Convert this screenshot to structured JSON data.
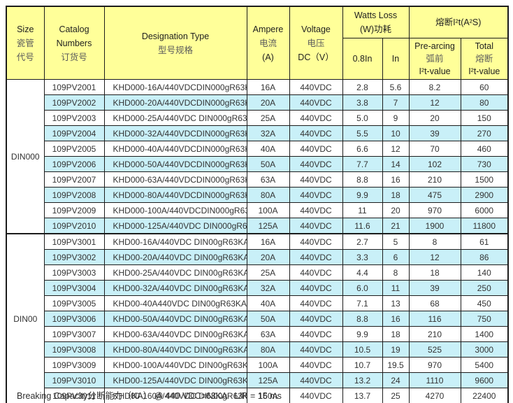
{
  "colors": {
    "header_bg": "#FFFF99",
    "row_alt_bg": "#C9F0F8",
    "row_bg": "#FFFFFF",
    "border": "#1C1C1C",
    "text": "#333333",
    "header_zh_text": "#5C5C5C"
  },
  "footer": {
    "note": "Breaking Capacity分断能力（KA） @ 440 VDC=63KA   L/R = 15 ms"
  },
  "table": {
    "headers": {
      "size": {
        "en": "Size",
        "zh": [
          "瓷管",
          "代号"
        ]
      },
      "catalog": {
        "en": [
          "Catalog",
          "Numbers"
        ],
        "zh": "订货号"
      },
      "designation": {
        "en": "Designation Type",
        "zh": "型号规格"
      },
      "ampere": {
        "en": "Ampere",
        "zh": "电流",
        "unit": "(A)"
      },
      "voltage": {
        "en": "Voltage",
        "zh": "电压",
        "unit": "DC（V）"
      },
      "watts_loss": {
        "en": "Watts Loss",
        "zh": "(W)功耗",
        "sub": [
          "0.8In",
          "In"
        ]
      },
      "i2t": {
        "title": "熔断I²t(A²S)",
        "pre_arcing": [
          "Pre-arcing",
          "弧前",
          "I²t-value"
        ],
        "total": [
          "Total",
          "熔断",
          "I²t-value"
        ]
      }
    },
    "groups": [
      {
        "size": "DIN000",
        "rows": [
          {
            "catalog": "109PV2001",
            "designation": "KHD000-16A/440VDCDIN000gR63KA",
            "ampere": "16A",
            "voltage": "440VDC",
            "watts_08in": "2.8",
            "watts_in": "5.6",
            "prearcing_i2t": "8.2",
            "total_i2t": "60"
          },
          {
            "catalog": "109PV2002",
            "designation": "KHD000-20A/440VDCDIN000gR63KA",
            "ampere": "20A",
            "voltage": "440VDC",
            "watts_08in": "3.8",
            "watts_in": "7",
            "prearcing_i2t": "12",
            "total_i2t": "80"
          },
          {
            "catalog": "109PV2003",
            "designation": "KHD000-25A/440VDC DIN000gR63KA",
            "ampere": "25A",
            "voltage": "440VDC",
            "watts_08in": "5.0",
            "watts_in": "9",
            "prearcing_i2t": "20",
            "total_i2t": "150"
          },
          {
            "catalog": "109PV2004",
            "designation": "KHD000-32A/440VDCDIN000gR63KA",
            "ampere": "32A",
            "voltage": "440VDC",
            "watts_08in": "5.5",
            "watts_in": "10",
            "prearcing_i2t": "39",
            "total_i2t": "270"
          },
          {
            "catalog": "109PV2005",
            "designation": "KHD000-40A/440VDCDIN000gR63KA",
            "ampere": "40A",
            "voltage": "440VDC",
            "watts_08in": "6.6",
            "watts_in": "12",
            "prearcing_i2t": "70",
            "total_i2t": "460"
          },
          {
            "catalog": "109PV2006",
            "designation": "KHD000-50A/440VDCDIN000gR63KA",
            "ampere": "50A",
            "voltage": "440VDC",
            "watts_08in": "7.7",
            "watts_in": "14",
            "prearcing_i2t": "102",
            "total_i2t": "730"
          },
          {
            "catalog": "109PV2007",
            "designation": "KHD000-63A/440VDCDIN000gR63KA",
            "ampere": "63A",
            "voltage": "440VDC",
            "watts_08in": "8.8",
            "watts_in": "16",
            "prearcing_i2t": "210",
            "total_i2t": "1500"
          },
          {
            "catalog": "109PV2008",
            "designation": "KHD000-80A/440VDCDIN000gR63KA",
            "ampere": "80A",
            "voltage": "440VDC",
            "watts_08in": "9.9",
            "watts_in": "18",
            "prearcing_i2t": "475",
            "total_i2t": "2900"
          },
          {
            "catalog": "109PV2009",
            "designation": "KHD000-100A/440VDCDIN000gR63KA",
            "ampere": "100A",
            "voltage": "440VDC",
            "watts_08in": "11",
            "watts_in": "20",
            "prearcing_i2t": "970",
            "total_i2t": "6000"
          },
          {
            "catalog": "109PV2010",
            "designation": "KHD000-125A/440VDC DIN000gR63KA",
            "ampere": "125A",
            "voltage": "440VDC",
            "watts_08in": "11.6",
            "watts_in": "21",
            "prearcing_i2t": "1900",
            "total_i2t": "11800"
          }
        ]
      },
      {
        "size": "DIN00",
        "rows": [
          {
            "catalog": "109PV3001",
            "designation": "KHD00-16A/440VDC DIN00gR63KA",
            "ampere": "16A",
            "voltage": "440VDC",
            "watts_08in": "2.7",
            "watts_in": "5",
            "prearcing_i2t": "8",
            "total_i2t": "61"
          },
          {
            "catalog": "109PV3002",
            "designation": "KHD00-20A/440VDC DIN00gR63KA",
            "ampere": "20A",
            "voltage": "440VDC",
            "watts_08in": "3.3",
            "watts_in": "6",
            "prearcing_i2t": "12",
            "total_i2t": "86"
          },
          {
            "catalog": "109PV3003",
            "designation": "KHD00-25A/440VDC DIN00gR63KA",
            "ampere": "25A",
            "voltage": "440VDC",
            "watts_08in": "4.4",
            "watts_in": "8",
            "prearcing_i2t": "18",
            "total_i2t": "140"
          },
          {
            "catalog": "109PV3004",
            "designation": "KHD00-32A/440VDC DIN00gR63KA",
            "ampere": "32A",
            "voltage": "440VDC",
            "watts_08in": "6.0",
            "watts_in": "11",
            "prearcing_i2t": "39",
            "total_i2t": "250"
          },
          {
            "catalog": "109PV3005",
            "designation": "KHD00-40A440VDC DIN00gR63KA",
            "ampere": "40A",
            "voltage": "440VDC",
            "watts_08in": "7.1",
            "watts_in": "13",
            "prearcing_i2t": "68",
            "total_i2t": "450"
          },
          {
            "catalog": "109PV3006",
            "designation": "KHD00-50A/440VDC DIN00gR63KA",
            "ampere": "50A",
            "voltage": "440VDC",
            "watts_08in": "8.8",
            "watts_in": "16",
            "prearcing_i2t": "116",
            "total_i2t": "750"
          },
          {
            "catalog": "109PV3007",
            "designation": "KHD00-63A/440VDC DIN00gR63KA",
            "ampere": "63A",
            "voltage": "440VDC",
            "watts_08in": "9.9",
            "watts_in": "18",
            "prearcing_i2t": "210",
            "total_i2t": "1400"
          },
          {
            "catalog": "109PV3008",
            "designation": "KHD00-80A/440VDC DIN00gR63KA",
            "ampere": "80A",
            "voltage": "440VDC",
            "watts_08in": "10.5",
            "watts_in": "19",
            "prearcing_i2t": "525",
            "total_i2t": "3000"
          },
          {
            "catalog": "109PV3009",
            "designation": "KHD00-100A/440VDC DIN00gR63KA",
            "ampere": "100A",
            "voltage": "440VDC",
            "watts_08in": "10.7",
            "watts_in": "19.5",
            "prearcing_i2t": "970",
            "total_i2t": "5400"
          },
          {
            "catalog": "109PV3010",
            "designation": "KHD00-125A/440VDC DIN00gR63KA",
            "ampere": "125A",
            "voltage": "440VDC",
            "watts_08in": "13.2",
            "watts_in": "24",
            "prearcing_i2t": "1110",
            "total_i2t": "9600"
          },
          {
            "catalog": "109PV3011",
            "designation": "KHD00-160A/440VDC DIN00gR63KA",
            "ampere": "160A",
            "voltage": "440VDC",
            "watts_08in": "13.7",
            "watts_in": "25",
            "prearcing_i2t": "4270",
            "total_i2t": "22400"
          }
        ]
      }
    ]
  }
}
